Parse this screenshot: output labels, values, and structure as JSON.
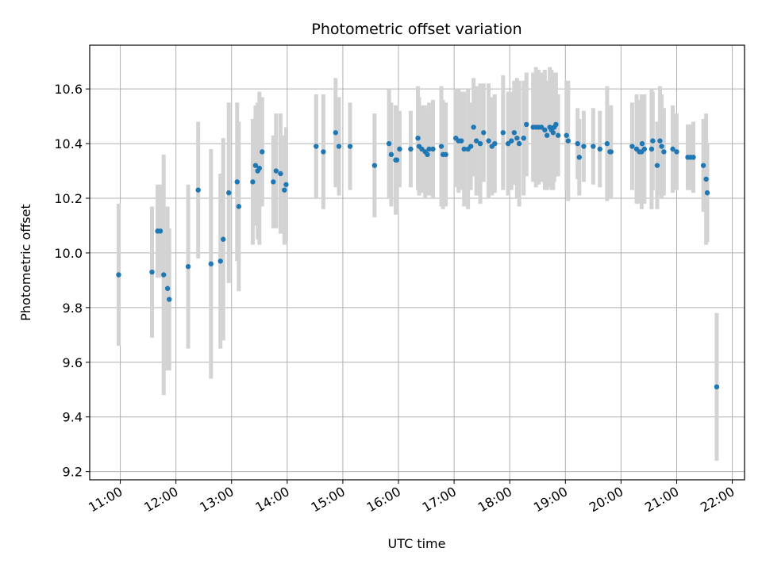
{
  "chart_data": {
    "type": "scatter",
    "title": "Photometric offset variation",
    "xlabel": "UTC time",
    "ylabel": "Photometric offset",
    "xlim": [
      10.45,
      22.22
    ],
    "ylim": [
      9.17,
      10.76
    ],
    "x_ticks": [
      {
        "value": 11,
        "label": "11:00"
      },
      {
        "value": 12,
        "label": "12:00"
      },
      {
        "value": 13,
        "label": "13:00"
      },
      {
        "value": 14,
        "label": "14:00"
      },
      {
        "value": 15,
        "label": "15:00"
      },
      {
        "value": 16,
        "label": "16:00"
      },
      {
        "value": 17,
        "label": "17:00"
      },
      {
        "value": 18,
        "label": "18:00"
      },
      {
        "value": 19,
        "label": "19:00"
      },
      {
        "value": 20,
        "label": "20:00"
      },
      {
        "value": 21,
        "label": "21:00"
      },
      {
        "value": 22,
        "label": "22:00"
      }
    ],
    "y_ticks": [
      {
        "value": 9.2,
        "label": "9.2"
      },
      {
        "value": 9.4,
        "label": "9.4"
      },
      {
        "value": 9.6,
        "label": "9.6"
      },
      {
        "value": 9.8,
        "label": "9.8"
      },
      {
        "value": 10.0,
        "label": "10.0"
      },
      {
        "value": 10.2,
        "label": "10.2"
      },
      {
        "value": 10.4,
        "label": "10.4"
      },
      {
        "value": 10.6,
        "label": "10.6"
      }
    ],
    "grid": true,
    "colors": {
      "point": "#1f77b4",
      "errorbar": "#d3d3d3",
      "grid": "#b0b0b0"
    },
    "series": [
      {
        "x": [
          10.97,
          11.57,
          11.67,
          11.72,
          11.78,
          11.85,
          11.88,
          12.22,
          12.4,
          12.63,
          12.8,
          12.85,
          12.95,
          13.1,
          13.13,
          13.38,
          13.43,
          13.47,
          13.5,
          13.55,
          13.75,
          13.8,
          13.88,
          13.95,
          13.98,
          14.52,
          14.65,
          14.87,
          14.93,
          15.13,
          15.57,
          15.83,
          15.87,
          15.95,
          15.97,
          16.02,
          16.22,
          16.35,
          16.37,
          16.42,
          16.48,
          16.52,
          16.55,
          16.62,
          16.77,
          16.8,
          16.85,
          17.03,
          17.08,
          17.13,
          17.18,
          17.25,
          17.3,
          17.35,
          17.4,
          17.47,
          17.53,
          17.62,
          17.68,
          17.73,
          17.88,
          17.97,
          18.03,
          18.08,
          18.13,
          18.17,
          18.25,
          18.3,
          18.42,
          18.47,
          18.52,
          18.57,
          18.63,
          18.67,
          18.72,
          18.75,
          18.78,
          18.8,
          18.83,
          18.87,
          19.02,
          19.05,
          19.22,
          19.25,
          19.33,
          19.5,
          19.62,
          19.75,
          19.8,
          19.82,
          20.2,
          20.28,
          20.33,
          20.37,
          20.38,
          20.42,
          20.55,
          20.57,
          20.65,
          20.7,
          20.73,
          20.77,
          20.93,
          21.0,
          21.2,
          21.25,
          21.3,
          21.48,
          21.53,
          21.55,
          21.72
        ],
        "y": [
          9.92,
          9.93,
          10.08,
          10.08,
          9.92,
          9.87,
          9.83,
          9.95,
          10.23,
          9.96,
          9.97,
          10.05,
          10.22,
          10.26,
          10.17,
          10.26,
          10.32,
          10.3,
          10.31,
          10.37,
          10.26,
          10.3,
          10.29,
          10.23,
          10.25,
          10.39,
          10.37,
          10.44,
          10.39,
          10.39,
          10.32,
          10.4,
          10.36,
          10.34,
          10.34,
          10.38,
          10.38,
          10.42,
          10.39,
          10.38,
          10.37,
          10.36,
          10.38,
          10.38,
          10.39,
          10.36,
          10.36,
          10.42,
          10.41,
          10.41,
          10.38,
          10.38,
          10.39,
          10.46,
          10.41,
          10.4,
          10.44,
          10.41,
          10.39,
          10.4,
          10.44,
          10.4,
          10.41,
          10.44,
          10.42,
          10.4,
          10.42,
          10.47,
          10.46,
          10.46,
          10.46,
          10.46,
          10.45,
          10.43,
          10.46,
          10.45,
          10.44,
          10.46,
          10.47,
          10.43,
          10.43,
          10.41,
          10.4,
          10.35,
          10.39,
          10.39,
          10.38,
          10.4,
          10.37,
          10.37,
          10.39,
          10.38,
          10.37,
          10.37,
          10.4,
          10.38,
          10.38,
          10.41,
          10.32,
          10.41,
          10.39,
          10.37,
          10.38,
          10.37,
          10.35,
          10.35,
          10.35,
          10.32,
          10.27,
          10.22,
          9.51
        ],
        "err": [
          0.26,
          0.24,
          0.17,
          0.17,
          0.44,
          0.3,
          0.26,
          0.3,
          0.25,
          0.42,
          0.32,
          0.37,
          0.33,
          0.29,
          0.31,
          0.23,
          0.22,
          0.25,
          0.28,
          0.2,
          0.17,
          0.21,
          0.22,
          0.2,
          0.21,
          0.19,
          0.21,
          0.2,
          0.18,
          0.16,
          0.19,
          0.2,
          0.19,
          0.2,
          0.2,
          0.14,
          0.14,
          0.19,
          0.18,
          0.16,
          0.17,
          0.15,
          0.17,
          0.18,
          0.22,
          0.2,
          0.19,
          0.18,
          0.19,
          0.18,
          0.21,
          0.22,
          0.16,
          0.18,
          0.2,
          0.22,
          0.18,
          0.21,
          0.18,
          0.18,
          0.21,
          0.19,
          0.18,
          0.19,
          0.22,
          0.23,
          0.21,
          0.19,
          0.2,
          0.22,
          0.21,
          0.2,
          0.22,
          0.2,
          0.22,
          0.22,
          0.21,
          0.2,
          0.19,
          0.15,
          0.2,
          0.22,
          0.13,
          0.14,
          0.13,
          0.14,
          0.14,
          0.21,
          0.16,
          0.17,
          0.16,
          0.2,
          0.19,
          0.21,
          0.17,
          0.2,
          0.22,
          0.18,
          0.16,
          0.2,
          0.19,
          0.16,
          0.16,
          0.14,
          0.12,
          0.12,
          0.13,
          0.17,
          0.24,
          0.18,
          0.27
        ]
      }
    ]
  }
}
